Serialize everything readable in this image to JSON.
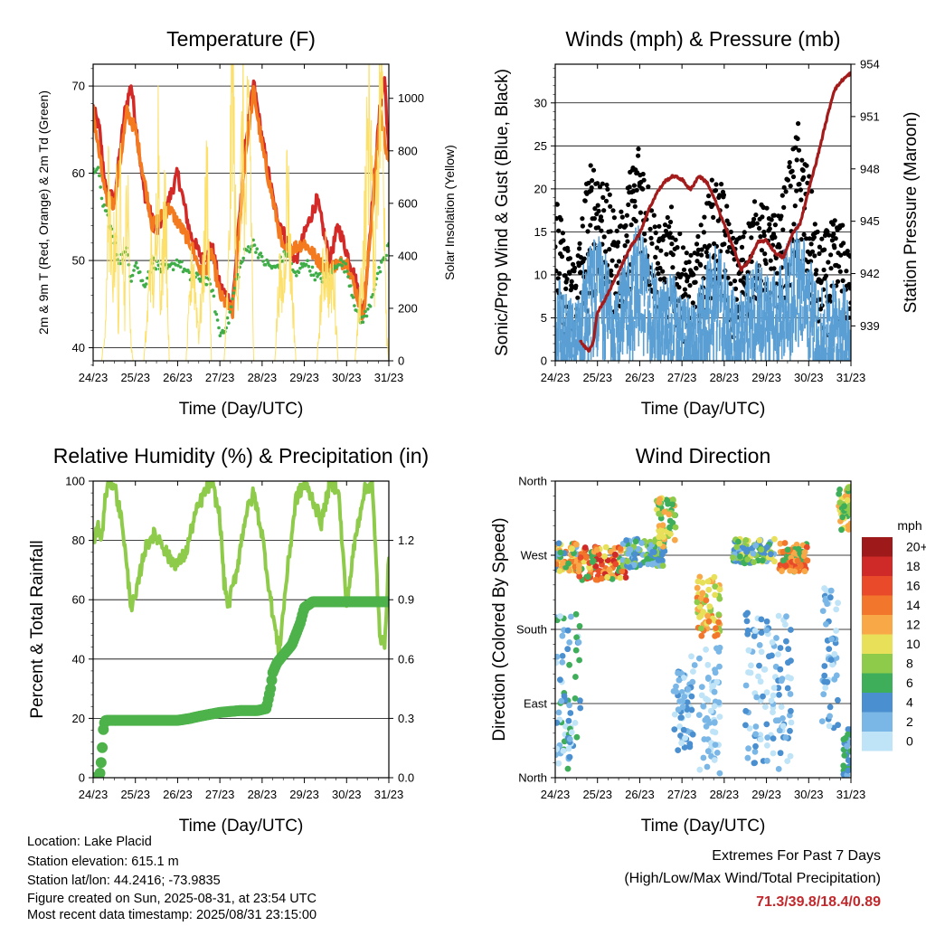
{
  "footer": {
    "location": "Location: Lake Placid",
    "elevation": "Station elevation: 615.1 m",
    "latlon": "Station lat/lon: 44.2416; -73.9835",
    "created": "Figure created on Sun, 2025-08-31, at 23:54 UTC",
    "timestamp": "Most recent data timestamp: 2025/08/31 23:15:00"
  },
  "extremes": {
    "title": "Extremes For Past 7 Days",
    "subtitle": "(High/Low/Max Wind/Total Precipitation)",
    "values": "71.3/39.8/18.4/0.89"
  },
  "colors": {
    "temp_red": "#d42a27",
    "temp_orange": "#f47a1f",
    "dewpoint_green": "#3fae49",
    "solar_yellow": "#fce06a",
    "gust_black": "#000000",
    "wind_blue": "#5a9fd4",
    "pressure_maroon": "#a31b1b",
    "rh_lightgreen": "#8fcb4a",
    "precip_green": "#4db24a"
  },
  "chart_data": [
    {
      "id": "temperature",
      "type": "line",
      "title": "Temperature (F)",
      "xlabel": "Time (Day/UTC)",
      "ylabel": "2m & 9m T (Red, Orange) & 2m Td (Green)",
      "ylabel_right": "Solar Insolation (Yellow)",
      "x_ticks": [
        "24/23",
        "25/23",
        "26/23",
        "27/23",
        "28/23",
        "29/23",
        "30/23",
        "31/23"
      ],
      "xlim": [
        0,
        7
      ],
      "ylim": [
        38.5,
        72.5
      ],
      "y_ticks": [
        40,
        50,
        60,
        70
      ],
      "ylim_right": [
        0,
        1130
      ],
      "y_ticks_right": [
        0,
        200,
        400,
        600,
        800,
        1000
      ],
      "grid": "horizontal",
      "series": [
        {
          "color": "temp_red",
          "kind": "line",
          "x": [
            0,
            0.15,
            0.3,
            0.5,
            0.75,
            0.9,
            1.0,
            1.2,
            1.5,
            1.8,
            2.0,
            2.3,
            2.6,
            2.8,
            3.0,
            3.3,
            3.6,
            3.8,
            4.0,
            4.3,
            4.6,
            4.8,
            5.0,
            5.3,
            5.6,
            5.8,
            6.0,
            6.2,
            6.4,
            6.6,
            6.8,
            6.9,
            7.0
          ],
          "y": [
            67.5,
            65,
            58,
            57,
            67,
            70.2,
            66,
            58,
            53,
            57,
            60,
            53,
            50,
            52,
            47,
            45,
            63,
            70.3,
            64,
            56,
            52,
            50,
            53,
            57,
            50,
            54,
            51,
            48,
            44,
            56,
            68,
            71,
            62
          ]
        },
        {
          "color": "temp_orange",
          "kind": "line",
          "x": [
            0,
            0.3,
            0.5,
            0.8,
            1.0,
            1.4,
            1.8,
            2.3,
            2.6,
            2.8,
            3.0,
            3.3,
            3.6,
            3.8,
            4.0,
            4.5,
            5.0,
            5.5,
            6.0,
            6.4,
            6.8,
            7.0
          ],
          "y": [
            67,
            57,
            56.5,
            67,
            65,
            54,
            56,
            52,
            48,
            51,
            46,
            44,
            62,
            69.5,
            63,
            51,
            52,
            49,
            50,
            43.5,
            67,
            61
          ]
        },
        {
          "color": "dewpoint_green",
          "kind": "dots",
          "x": [
            0,
            0.1,
            0.2,
            0.35,
            0.5,
            0.6,
            0.8,
            0.9,
            1.0,
            1.2,
            1.4,
            1.6,
            1.8,
            2.0,
            2.3,
            2.6,
            2.8,
            3.0,
            3.2,
            3.4,
            3.6,
            3.8,
            4.0,
            4.3,
            4.6,
            4.8,
            5.0,
            5.3,
            5.6,
            5.8,
            6.0,
            6.3,
            6.5,
            6.7,
            6.9,
            7.0
          ],
          "y": [
            60,
            61,
            57,
            55,
            52,
            50,
            51,
            48,
            50,
            47,
            50,
            49,
            49,
            50,
            48,
            48,
            47,
            41.5,
            43,
            48,
            51,
            52,
            50,
            49,
            51,
            48,
            50,
            48,
            48,
            50,
            49,
            43,
            44,
            48,
            50,
            52
          ]
        },
        {
          "color": "solar_yellow",
          "kind": "line",
          "axis": "right",
          "x": [
            0,
            0.2,
            0.3,
            0.35,
            0.45,
            0.55,
            0.6,
            0.65,
            0.75,
            0.8,
            0.9,
            0.95,
            1.2,
            1.3,
            1.35,
            1.45,
            1.55,
            1.6,
            1.7,
            1.8,
            2.2,
            2.3,
            2.35,
            2.5,
            2.6,
            2.7,
            2.8,
            3.1,
            3.2,
            3.3,
            3.4,
            3.55,
            3.6,
            3.7,
            3.8,
            4.3,
            4.4,
            4.5,
            4.6,
            4.65,
            4.8,
            5.3,
            5.4,
            5.5,
            5.6,
            5.7,
            5.8,
            6.2,
            6.3,
            6.4,
            6.55,
            6.65,
            6.75,
            6.85,
            6.95,
            7.0
          ],
          "y": [
            0,
            0,
            120,
            650,
            300,
            550,
            100,
            800,
            200,
            700,
            50,
            0,
            0,
            200,
            400,
            250,
            900,
            150,
            700,
            0,
            0,
            250,
            400,
            100,
            300,
            700,
            0,
            0,
            300,
            1130,
            200,
            900,
            500,
            1000,
            0,
            0,
            300,
            250,
            700,
            450,
            0,
            0,
            250,
            400,
            250,
            300,
            0,
            0,
            200,
            400,
            1000,
            300,
            900,
            1050,
            100,
            0
          ]
        }
      ]
    },
    {
      "id": "winds",
      "type": "scatter",
      "title": "Winds (mph) & Pressure (mb)",
      "xlabel": "Time (Day/UTC)",
      "ylabel": "Sonic/Prop Wind & Gust (Blue, Black)",
      "ylabel_right": "Station Pressure (Maroon)",
      "x_ticks": [
        "24/23",
        "25/23",
        "26/23",
        "27/23",
        "28/23",
        "29/23",
        "30/23",
        "31/23"
      ],
      "xlim": [
        0,
        7
      ],
      "ylim": [
        0,
        34.5
      ],
      "y_ticks": [
        0,
        5,
        10,
        15,
        20,
        25,
        30
      ],
      "ylim_right": [
        937,
        954
      ],
      "y_ticks_right": [
        939,
        942,
        945,
        948,
        951,
        954
      ],
      "grid": "horizontal",
      "series": [
        {
          "color": "gust_black",
          "kind": "band",
          "x": [
            0,
            0.25,
            0.5,
            0.75,
            1.0,
            1.25,
            1.5,
            1.75,
            2.0,
            2.25,
            2.5,
            2.75,
            3.0,
            3.25,
            3.5,
            3.75,
            4.0,
            4.25,
            4.5,
            4.75,
            5.0,
            5.25,
            5.5,
            5.75,
            6.0,
            6.25,
            6.5,
            6.75,
            7.0
          ],
          "low": [
            5,
            2,
            3,
            5,
            8,
            6,
            4,
            8,
            10,
            6,
            5,
            4,
            2,
            3,
            5,
            8,
            5,
            2,
            4,
            7,
            6,
            5,
            8,
            10,
            5,
            2,
            3,
            4,
            2
          ],
          "high": [
            20,
            14,
            12,
            22,
            25,
            20,
            16,
            22,
            27,
            20,
            15,
            18,
            14,
            12,
            17,
            22,
            20,
            14,
            16,
            19,
            18,
            17,
            22,
            28,
            22,
            14,
            16,
            17,
            12
          ]
        },
        {
          "color": "wind_blue",
          "kind": "band",
          "x": [
            0,
            0.25,
            0.5,
            0.75,
            1.0,
            1.25,
            1.5,
            1.75,
            2.0,
            2.25,
            2.5,
            2.75,
            3.0,
            3.25,
            3.5,
            3.75,
            4.0,
            4.25,
            4.5,
            4.75,
            5.0,
            5.25,
            5.5,
            5.75,
            6.0,
            6.25,
            6.5,
            6.75,
            7.0
          ],
          "low": [
            2,
            0,
            0,
            2,
            4,
            3,
            1,
            4,
            5,
            3,
            2,
            1,
            0,
            0,
            2,
            4,
            2,
            0,
            1,
            3,
            3,
            2,
            4,
            5,
            2,
            0,
            0,
            1,
            0
          ],
          "high": [
            12,
            8,
            7,
            14,
            15,
            12,
            10,
            14,
            17,
            12,
            9,
            11,
            8,
            7,
            10,
            14,
            12,
            8,
            10,
            12,
            11,
            11,
            14,
            17,
            13,
            8,
            10,
            10,
            7
          ]
        },
        {
          "color": "pressure_maroon",
          "kind": "line",
          "axis": "right",
          "x": [
            0.6,
            0.7,
            0.8,
            0.9,
            1.0,
            1.2,
            1.4,
            1.6,
            1.8,
            2.0,
            2.2,
            2.4,
            2.6,
            2.8,
            3.0,
            3.2,
            3.4,
            3.6,
            3.8,
            4.0,
            4.2,
            4.4,
            4.6,
            4.8,
            5.0,
            5.2,
            5.4,
            5.6,
            5.8,
            6.0,
            6.2,
            6.4,
            6.6,
            6.8,
            7.0
          ],
          "y": [
            938.1,
            937.8,
            937.6,
            938.1,
            939.8,
            940.6,
            941.6,
            942.6,
            943.6,
            944.3,
            945.6,
            946.6,
            947.3,
            947.6,
            947.4,
            946.8,
            947.6,
            947.2,
            946.1,
            944.8,
            943.6,
            942.2,
            942.8,
            943.8,
            943.9,
            943.2,
            942.9,
            944.2,
            944.9,
            946.8,
            948.6,
            950.6,
            952.5,
            953.1,
            953.5
          ]
        }
      ]
    },
    {
      "id": "humidity",
      "type": "line",
      "title": "Relative Humidity (%) & Precipitation (in)",
      "xlabel": "Time (Day/UTC)",
      "ylabel": "Percent & Total Rainfall",
      "x_ticks": [
        "24/23",
        "25/23",
        "26/23",
        "27/23",
        "28/23",
        "29/23",
        "30/23",
        "31/23"
      ],
      "xlim": [
        0,
        7
      ],
      "ylim": [
        0,
        100
      ],
      "y_ticks": [
        0,
        20,
        40,
        60,
        80,
        100
      ],
      "ylim_right": [
        0,
        1.5
      ],
      "y_ticks_right": [
        0.0,
        0.3,
        0.6,
        0.9,
        1.2
      ],
      "grid": "horizontal",
      "series": [
        {
          "color": "rh_lightgreen",
          "kind": "line",
          "x": [
            0,
            0.1,
            0.2,
            0.3,
            0.4,
            0.5,
            0.6,
            0.7,
            0.8,
            0.9,
            1.0,
            1.2,
            1.4,
            1.6,
            1.8,
            2.0,
            2.2,
            2.4,
            2.6,
            2.8,
            3.0,
            3.1,
            3.2,
            3.4,
            3.6,
            3.8,
            4.0,
            4.2,
            4.4,
            4.6,
            4.8,
            5.0,
            5.2,
            5.4,
            5.6,
            5.8,
            6.0,
            6.2,
            6.4,
            6.6,
            6.7,
            6.8,
            6.9,
            7.0
          ],
          "y": [
            78,
            85,
            80,
            96,
            100,
            99,
            92,
            85,
            70,
            58,
            60,
            76,
            82,
            80,
            74,
            72,
            76,
            88,
            95,
            100,
            88,
            66,
            58,
            70,
            88,
            96,
            82,
            60,
            42,
            70,
            94,
            99,
            94,
            86,
            99,
            98,
            58,
            80,
            96,
            100,
            72,
            45,
            46,
            74
          ]
        },
        {
          "color": "precip_green",
          "kind": "dots",
          "x": [
            0,
            0.15,
            0.2,
            0.25,
            0.3,
            0.5,
            1.0,
            1.5,
            2.0,
            2.3,
            2.5,
            3.0,
            3.5,
            3.9,
            4.1,
            4.2,
            4.25,
            4.35,
            4.5,
            4.7,
            4.9,
            5.0,
            5.2,
            5.5,
            6.0,
            6.5,
            7.0
          ],
          "y": [
            0,
            0.0,
            0.1,
            0.27,
            0.29,
            0.29,
            0.29,
            0.29,
            0.29,
            0.3,
            0.31,
            0.33,
            0.34,
            0.34,
            0.35,
            0.45,
            0.53,
            0.58,
            0.62,
            0.67,
            0.78,
            0.86,
            0.89,
            0.89,
            0.89,
            0.89,
            0.89
          ]
        }
      ]
    },
    {
      "id": "direction",
      "type": "scatter",
      "title": "Wind Direction",
      "xlabel": "Time (Day/UTC)",
      "ylabel": "Direction (Colored By Speed)",
      "x_ticks": [
        "24/23",
        "25/23",
        "26/23",
        "27/23",
        "28/23",
        "29/23",
        "30/23",
        "31/23"
      ],
      "xlim": [
        0,
        7
      ],
      "ylim": [
        0,
        360
      ],
      "y_ticks": [
        "North",
        "East",
        "South",
        "West",
        "North"
      ],
      "y_tick_values": [
        0,
        90,
        180,
        270,
        360
      ],
      "grid": "horizontal",
      "legend": {
        "title": "mph",
        "placement": "right",
        "labels": [
          "20+",
          "18",
          "16",
          "14",
          "12",
          "10",
          "8",
          "6",
          "4",
          "2",
          "0"
        ],
        "colors": [
          "#9e1a1a",
          "#cf2a27",
          "#e84a2a",
          "#f2762b",
          "#f9a848",
          "#e9e05a",
          "#8fcb4a",
          "#3fae5a",
          "#4a8fcf",
          "#7ab7e6",
          "#bfe3f7"
        ]
      },
      "groups": [
        {
          "x0": 0.0,
          "x1": 0.55,
          "dir0": 250,
          "dir1": 285,
          "speeds": [
            4,
            6,
            10,
            12,
            14,
            2
          ]
        },
        {
          "x0": 0.55,
          "x1": 1.7,
          "dir0": 240,
          "dir1": 280,
          "speeds": [
            10,
            12,
            14,
            16,
            18,
            6
          ]
        },
        {
          "x0": 1.6,
          "x1": 2.6,
          "dir0": 255,
          "dir1": 290,
          "speeds": [
            4,
            6,
            8,
            2
          ]
        },
        {
          "x0": 2.4,
          "x1": 2.85,
          "dir0": 280,
          "dir1": 340,
          "speeds": [
            6,
            8,
            10,
            12
          ]
        },
        {
          "x0": 3.35,
          "x1": 3.9,
          "dir0": 170,
          "dir1": 245,
          "speeds": [
            8,
            10,
            12,
            14
          ]
        },
        {
          "x0": 4.2,
          "x1": 5.2,
          "dir0": 260,
          "dir1": 290,
          "speeds": [
            4,
            6,
            8,
            10,
            2
          ]
        },
        {
          "x0": 5.3,
          "x1": 6.0,
          "dir0": 250,
          "dir1": 285,
          "speeds": [
            12,
            14,
            16,
            6
          ]
        },
        {
          "x0": 6.7,
          "x1": 7.0,
          "dir0": 300,
          "dir1": 355,
          "speeds": [
            8,
            10,
            12,
            6
          ]
        },
        {
          "x0": 0.0,
          "x1": 0.6,
          "dir0": 10,
          "dir1": 200,
          "speeds": [
            0,
            2,
            4,
            6
          ]
        },
        {
          "x0": 2.8,
          "x1": 3.3,
          "dir0": 30,
          "dir1": 150,
          "speeds": [
            0,
            2,
            4
          ]
        },
        {
          "x0": 3.4,
          "x1": 3.9,
          "dir0": 5,
          "dir1": 160,
          "speeds": [
            0,
            2
          ]
        },
        {
          "x0": 4.5,
          "x1": 5.6,
          "dir0": 10,
          "dir1": 200,
          "speeds": [
            0,
            2,
            4
          ]
        },
        {
          "x0": 6.3,
          "x1": 6.7,
          "dir0": 60,
          "dir1": 230,
          "speeds": [
            0,
            2,
            4
          ]
        },
        {
          "x0": 6.8,
          "x1": 7.0,
          "dir0": 0,
          "dir1": 60,
          "speeds": [
            2,
            4,
            6
          ]
        }
      ]
    }
  ]
}
